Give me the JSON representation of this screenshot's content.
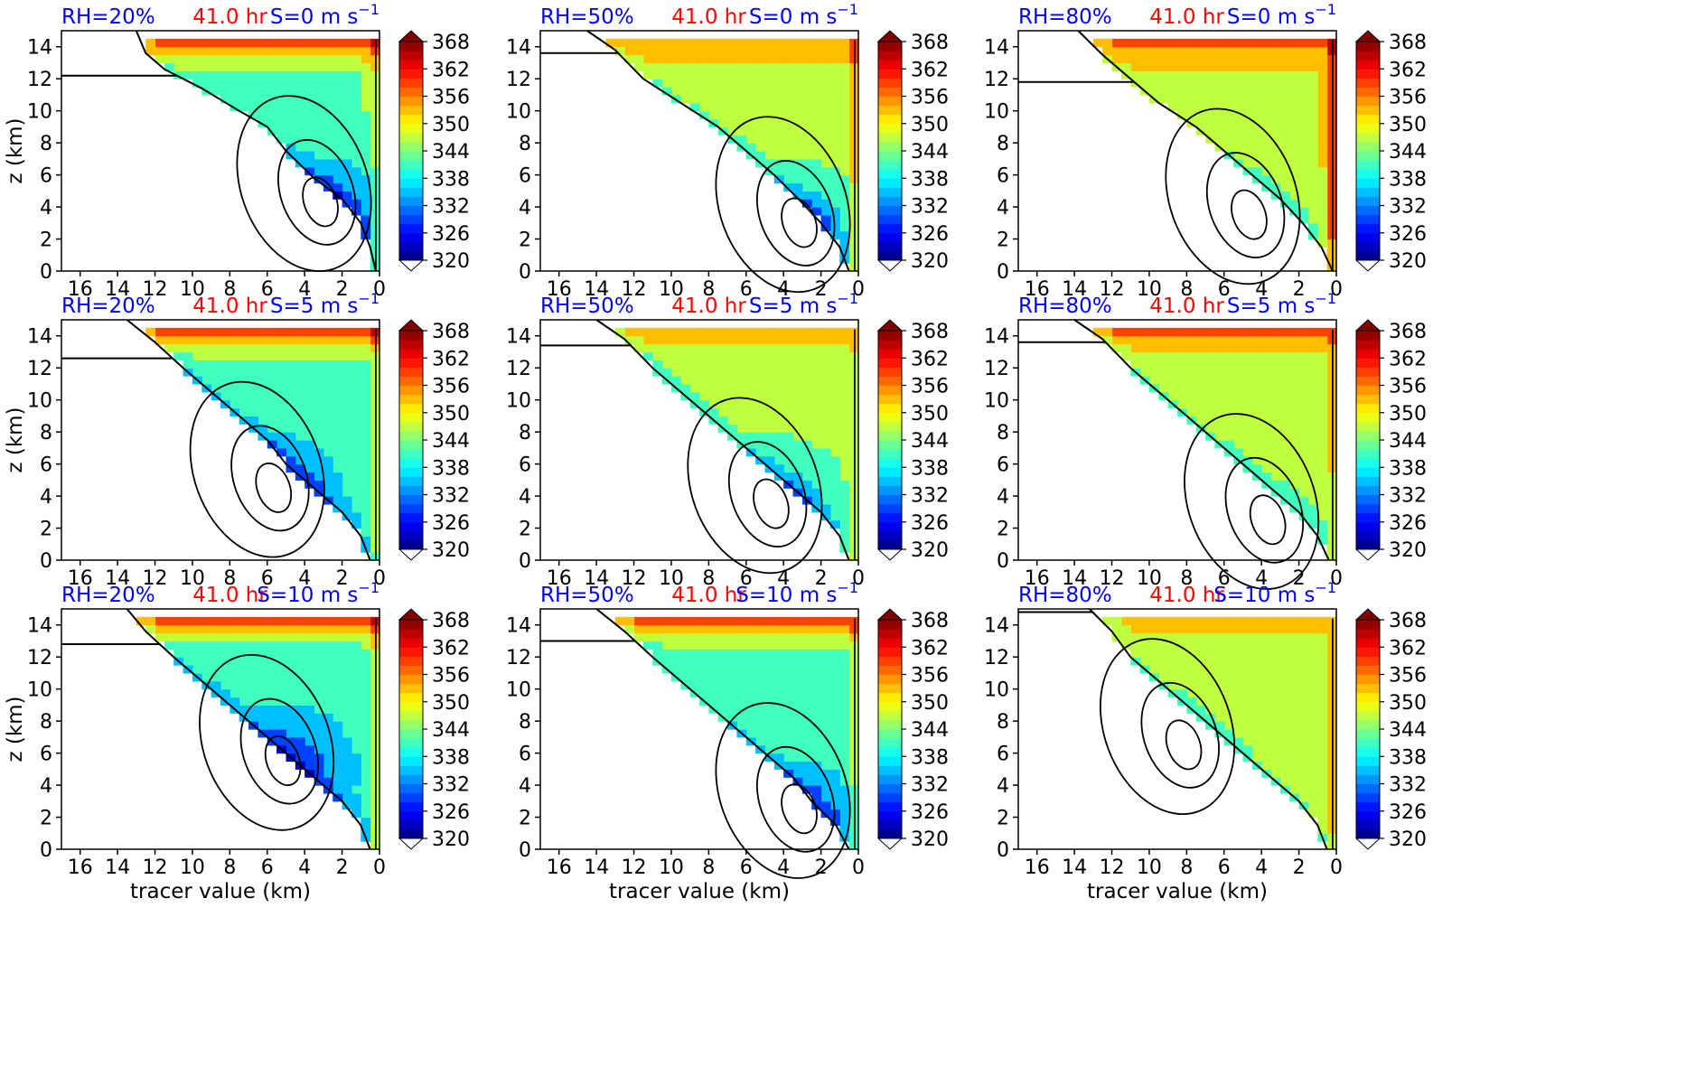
{
  "figure": {
    "colorbar_ticks": [
      "368",
      "362",
      "356",
      "350",
      "344",
      "338",
      "332",
      "326",
      "320"
    ],
    "xlabel": "tracer value (km)",
    "ylabel": "z (km)"
  },
  "chart_data": [
    {
      "type": "heatmap",
      "rh_label": "RH=20%",
      "time_label": "41.0 hr",
      "shear_label": "S=0 m s",
      "shear_exp": "−1",
      "xlim": [
        17,
        0
      ],
      "ylim": [
        0,
        15
      ],
      "xticks": [
        "16",
        "14",
        "12",
        "10",
        "8",
        "6",
        "4",
        "2",
        "0"
      ],
      "yticks": [
        "0",
        "2",
        "4",
        "6",
        "8",
        "10",
        "12",
        "14"
      ],
      "xlabel": "",
      "ylabel": "z (km)",
      "colorbar": {
        "min": 320,
        "max": 368,
        "step": 6
      },
      "edge": {
        "xedge": [
          0.2,
          0.5,
          1.0,
          2.0,
          3.5,
          5.0,
          6.0,
          7.5,
          9.5,
          11.5,
          12.5,
          13.0
        ],
        "zedge": [
          0.0,
          1.5,
          3.0,
          4.5,
          5.8,
          7.5,
          9.0,
          10.0,
          11.4,
          12.6,
          13.6,
          15.0
        ]
      },
      "overlay_height": 12.2,
      "core": {
        "x": 3.0,
        "z": 3.8,
        "v": 328
      },
      "bulk": 344,
      "top": 360,
      "right": 350
    },
    {
      "type": "heatmap",
      "rh_label": "RH=50%",
      "time_label": "41.0 hr",
      "shear_label": "S=0 m s",
      "shear_exp": "−1",
      "xlim": [
        17,
        0
      ],
      "ylim": [
        0,
        15
      ],
      "xticks": [
        "16",
        "14",
        "12",
        "10",
        "8",
        "6",
        "4",
        "2",
        "0"
      ],
      "yticks": [
        "0",
        "2",
        "4",
        "6",
        "8",
        "10",
        "12",
        "14"
      ],
      "xlabel": "",
      "ylabel": "",
      "colorbar": {
        "min": 320,
        "max": 368,
        "step": 6
      },
      "edge": {
        "xedge": [
          0.5,
          1.0,
          2.0,
          3.2,
          4.5,
          6.0,
          7.5,
          9.5,
          11.5,
          13.0,
          14.5
        ],
        "zedge": [
          0.0,
          1.5,
          3.0,
          4.5,
          6.0,
          7.5,
          9.0,
          10.5,
          12.0,
          13.8,
          15.0
        ]
      },
      "overlay_height": 13.6,
      "core": {
        "x": 3.0,
        "z": 2.5,
        "v": 332
      },
      "bulk": 347,
      "top": 356,
      "right": 356
    },
    {
      "type": "heatmap",
      "rh_label": "RH=80%",
      "time_label": "41.0 hr",
      "shear_label": "S=0 m s",
      "shear_exp": "−1",
      "xlim": [
        17,
        0
      ],
      "ylim": [
        0,
        15
      ],
      "xticks": [
        "16",
        "14",
        "12",
        "10",
        "8",
        "6",
        "4",
        "2",
        "0"
      ],
      "yticks": [
        "0",
        "2",
        "4",
        "6",
        "8",
        "10",
        "12",
        "14"
      ],
      "xlabel": "",
      "ylabel": "",
      "colorbar": {
        "min": 320,
        "max": 368,
        "step": 6
      },
      "edge": {
        "xedge": [
          0.2,
          0.8,
          1.8,
          3.0,
          4.5,
          6.0,
          7.5,
          9.5,
          11.0,
          12.5,
          13.8
        ],
        "zedge": [
          0.0,
          1.5,
          3.0,
          4.5,
          6.0,
          7.5,
          9.0,
          10.5,
          12.0,
          13.5,
          15.0
        ]
      },
      "overlay_height": 11.8,
      "core": {
        "x": 4.5,
        "z": 3.0,
        "v": 340
      },
      "bulk": 350,
      "top": 358,
      "right": 362
    },
    {
      "type": "heatmap",
      "rh_label": "RH=20%",
      "time_label": "41.0 hr",
      "shear_label": "S=5 m s",
      "shear_exp": "−1",
      "xlim": [
        17,
        0
      ],
      "ylim": [
        0,
        15
      ],
      "xticks": [
        "16",
        "14",
        "12",
        "10",
        "8",
        "6",
        "4",
        "2",
        "0"
      ],
      "yticks": [
        "0",
        "2",
        "4",
        "6",
        "8",
        "10",
        "12",
        "14"
      ],
      "xlabel": "",
      "ylabel": "z (km)",
      "colorbar": {
        "min": 320,
        "max": 368,
        "step": 6
      },
      "edge": {
        "xedge": [
          0.5,
          1.0,
          2.0,
          3.5,
          5.0,
          6.0,
          7.5,
          9.0,
          10.5,
          12.0,
          13.5
        ],
        "zedge": [
          0.0,
          1.5,
          3.0,
          4.5,
          6.0,
          7.5,
          9.0,
          10.5,
          12.0,
          13.6,
          15.0
        ]
      },
      "overlay_height": 12.6,
      "core": {
        "x": 5.5,
        "z": 4.0,
        "v": 328
      },
      "bulk": 342,
      "top": 360,
      "right": 350
    },
    {
      "type": "heatmap",
      "rh_label": "RH=50%",
      "time_label": "41.0 hr",
      "shear_label": "S=5 m s",
      "shear_exp": "−1",
      "xlim": [
        17,
        0
      ],
      "ylim": [
        0,
        15
      ],
      "xticks": [
        "16",
        "14",
        "12",
        "10",
        "8",
        "6",
        "4",
        "2",
        "0"
      ],
      "yticks": [
        "0",
        "2",
        "4",
        "6",
        "8",
        "10",
        "12",
        "14"
      ],
      "xlabel": "",
      "ylabel": "",
      "colorbar": {
        "min": 320,
        "max": 368,
        "step": 6
      },
      "edge": {
        "xedge": [
          0.5,
          1.0,
          2.0,
          3.5,
          5.0,
          6.5,
          8.0,
          9.5,
          11.0,
          12.5,
          14.0
        ],
        "zedge": [
          0.0,
          1.5,
          3.0,
          4.5,
          6.0,
          7.5,
          9.0,
          10.5,
          12.0,
          13.8,
          15.0
        ]
      },
      "overlay_height": 13.4,
      "core": {
        "x": 4.5,
        "z": 3.0,
        "v": 332
      },
      "bulk": 346,
      "top": 354,
      "right": 350
    },
    {
      "type": "heatmap",
      "rh_label": "RH=80%",
      "time_label": "41.0 hr",
      "shear_label": "S=5 m s",
      "shear_exp": "−1",
      "xlim": [
        17,
        0
      ],
      "ylim": [
        0,
        15
      ],
      "xticks": [
        "16",
        "14",
        "12",
        "10",
        "8",
        "6",
        "4",
        "2",
        "0"
      ],
      "yticks": [
        "0",
        "2",
        "4",
        "6",
        "8",
        "10",
        "12",
        "14"
      ],
      "xlabel": "",
      "ylabel": "",
      "colorbar": {
        "min": 320,
        "max": 368,
        "step": 6
      },
      "edge": {
        "xedge": [
          0.4,
          1.0,
          2.0,
          3.5,
          5.0,
          6.5,
          8.0,
          9.5,
          11.0,
          12.5,
          14.0
        ],
        "zedge": [
          0.0,
          1.5,
          3.0,
          4.5,
          6.0,
          7.5,
          9.0,
          10.5,
          12.0,
          13.8,
          15.0
        ]
      },
      "overlay_height": 13.6,
      "core": {
        "x": 3.5,
        "z": 2.0,
        "v": 342
      },
      "bulk": 347,
      "top": 358,
      "right": 352
    },
    {
      "type": "heatmap",
      "rh_label": "RH=20%",
      "time_label": "41.0 hr",
      "shear_label": "S=10 m s",
      "shear_exp": "−1",
      "xlim": [
        17,
        0
      ],
      "ylim": [
        0,
        15
      ],
      "xticks": [
        "16",
        "14",
        "12",
        "10",
        "8",
        "6",
        "4",
        "2",
        "0"
      ],
      "yticks": [
        "0",
        "2",
        "4",
        "6",
        "8",
        "10",
        "12",
        "14"
      ],
      "xlabel": "tracer value (km)",
      "ylabel": "z (km)",
      "colorbar": {
        "min": 320,
        "max": 368,
        "step": 6
      },
      "edge": {
        "xedge": [
          0.5,
          1.0,
          2.0,
          3.5,
          5.0,
          6.5,
          8.0,
          9.5,
          11.0,
          12.5,
          13.5
        ],
        "zedge": [
          0.0,
          1.5,
          3.0,
          4.5,
          6.0,
          7.5,
          9.0,
          10.5,
          12.0,
          13.6,
          15.0
        ]
      },
      "overlay_height": 12.8,
      "core": {
        "x": 5.0,
        "z": 5.0,
        "v": 328
      },
      "bulk": 341,
      "top": 360,
      "right": 352
    },
    {
      "type": "heatmap",
      "rh_label": "RH=50%",
      "time_label": "41.0 hr",
      "shear_label": "S=10 m s",
      "shear_exp": "−1",
      "xlim": [
        17,
        0
      ],
      "ylim": [
        0,
        15
      ],
      "xticks": [
        "16",
        "14",
        "12",
        "10",
        "8",
        "6",
        "4",
        "2",
        "0"
      ],
      "yticks": [
        "0",
        "2",
        "4",
        "6",
        "8",
        "10",
        "12",
        "14"
      ],
      "xlabel": "tracer value (km)",
      "ylabel": "",
      "colorbar": {
        "min": 320,
        "max": 368,
        "step": 6
      },
      "edge": {
        "xedge": [
          0.5,
          1.2,
          2.5,
          3.5,
          5.0,
          6.5,
          8.0,
          9.5,
          11.0,
          12.5,
          14.0
        ],
        "zedge": [
          0.0,
          1.5,
          3.0,
          4.5,
          6.0,
          7.5,
          9.0,
          10.5,
          12.0,
          13.6,
          15.0
        ]
      },
      "overlay_height": 13.0,
      "core": {
        "x": 3.0,
        "z": 2.0,
        "v": 330
      },
      "bulk": 343,
      "top": 358,
      "right": 350
    },
    {
      "type": "heatmap",
      "rh_label": "RH=80%",
      "time_label": "41.0 hr",
      "shear_label": "S=10 m s",
      "shear_exp": "−1",
      "xlim": [
        17,
        0
      ],
      "ylim": [
        0,
        15
      ],
      "xticks": [
        "16",
        "14",
        "12",
        "10",
        "8",
        "6",
        "4",
        "2",
        "0"
      ],
      "yticks": [
        "0",
        "2",
        "4",
        "6",
        "8",
        "10",
        "12",
        "14"
      ],
      "xlabel": "tracer value (km)",
      "ylabel": "",
      "colorbar": {
        "min": 320,
        "max": 368,
        "step": 6
      },
      "edge": {
        "xedge": [
          0.5,
          1.0,
          2.0,
          3.5,
          5.0,
          6.5,
          8.0,
          9.5,
          11.0,
          12.0,
          13.2
        ],
        "zedge": [
          0.0,
          1.5,
          3.0,
          4.5,
          6.0,
          7.5,
          9.0,
          10.5,
          12.0,
          13.6,
          15.0
        ]
      },
      "overlay_height": 14.8,
      "core": {
        "x": 8.0,
        "z": 6.0,
        "v": 344
      },
      "bulk": 348,
      "top": 352,
      "right": 354
    }
  ]
}
